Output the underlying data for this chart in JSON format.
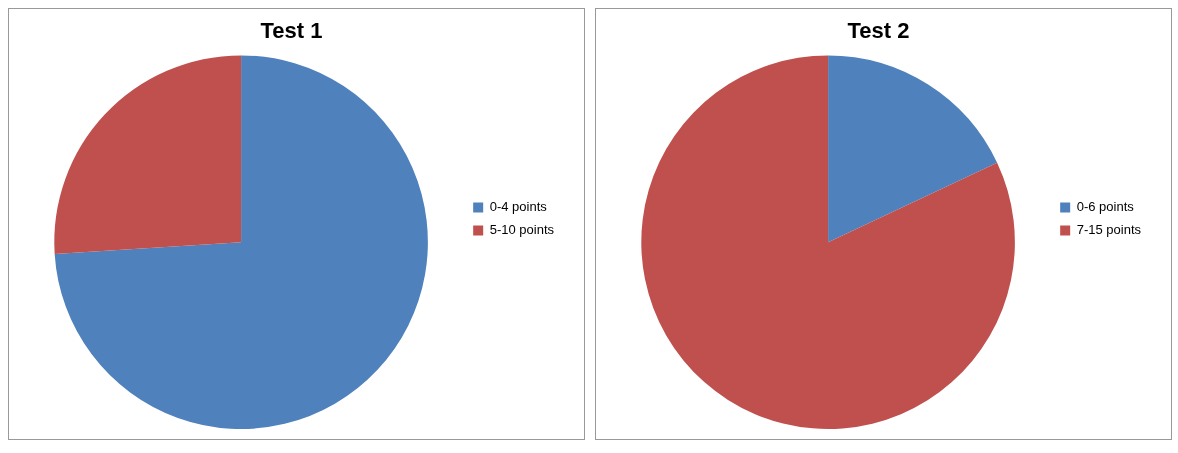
{
  "chart_data": [
    {
      "type": "pie",
      "title": "Test 1",
      "categories": [
        "0-4 points",
        "5-10 points"
      ],
      "values": [
        74,
        26
      ],
      "colors": [
        "#4f81bd",
        "#c0504d"
      ],
      "legend": "right"
    },
    {
      "type": "pie",
      "title": "Test 2",
      "categories": [
        "0-6 points",
        "7-15 points"
      ],
      "values": [
        18,
        82
      ],
      "colors": [
        "#4f81bd",
        "#c0504d"
      ],
      "legend": "right"
    }
  ]
}
